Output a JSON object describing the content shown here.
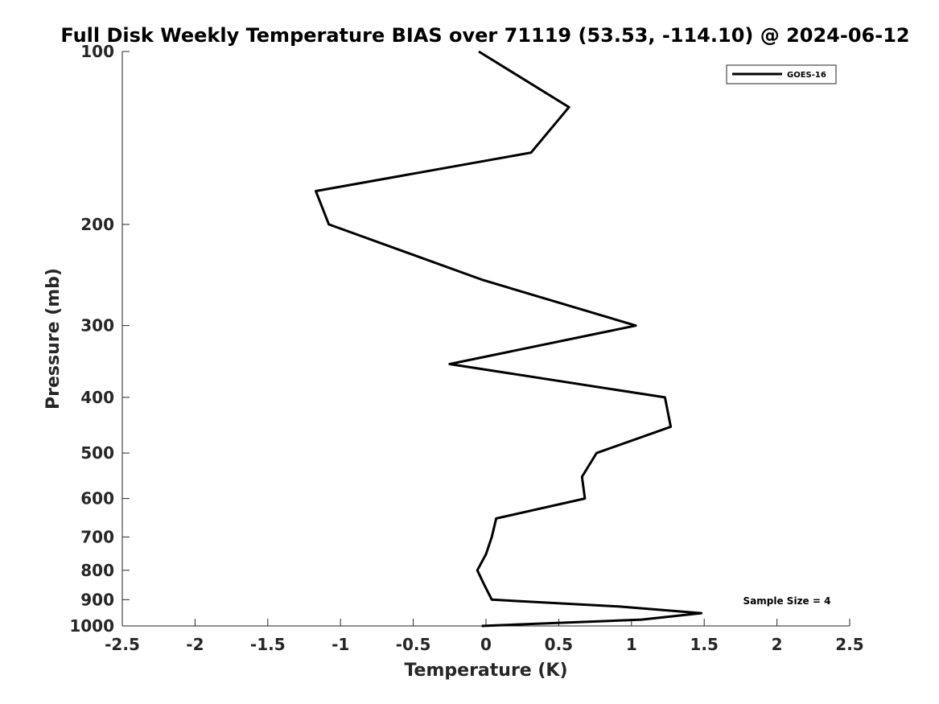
{
  "chart_data": {
    "type": "line",
    "title": "Full Disk Weekly Temperature BIAS over 71119 (53.53, -114.10) @ 2024-06-12",
    "xlabel": "Temperature (K)",
    "ylabel": "Pressure (mb)",
    "xlim": [
      -2.5,
      2.5
    ],
    "ylim": [
      100,
      1000
    ],
    "y_scale": "log",
    "y_reversed": true,
    "x_ticks": [
      -2.5,
      -2,
      -1.5,
      -1,
      -0.5,
      0,
      0.5,
      1,
      1.5,
      2,
      2.5
    ],
    "x_tick_labels": [
      "-2.5",
      "-2",
      "-1.5",
      "-1",
      "-0.5",
      "0",
      "0.5",
      "1",
      "1.5",
      "2",
      "2.5"
    ],
    "y_ticks": [
      100,
      200,
      300,
      400,
      500,
      600,
      700,
      800,
      900,
      1000
    ],
    "y_tick_labels": [
      "100",
      "200",
      "300",
      "400",
      "500",
      "600",
      "700",
      "800",
      "900",
      "1000"
    ],
    "grid": false,
    "legend_position": "top-right",
    "series": [
      {
        "name": "GOES-16",
        "color": "#000000",
        "points": [
          {
            "x": -0.05,
            "p": 100
          },
          {
            "x": 0.57,
            "p": 125
          },
          {
            "x": 0.31,
            "p": 150
          },
          {
            "x": -1.17,
            "p": 175
          },
          {
            "x": -1.08,
            "p": 200
          },
          {
            "x": -0.02,
            "p": 250
          },
          {
            "x": 1.03,
            "p": 300
          },
          {
            "x": -0.25,
            "p": 350
          },
          {
            "x": 1.23,
            "p": 400
          },
          {
            "x": 1.27,
            "p": 450
          },
          {
            "x": 0.76,
            "p": 500
          },
          {
            "x": 0.66,
            "p": 550
          },
          {
            "x": 0.68,
            "p": 600
          },
          {
            "x": 0.07,
            "p": 650
          },
          {
            "x": 0.04,
            "p": 700
          },
          {
            "x": 0.0,
            "p": 750
          },
          {
            "x": -0.06,
            "p": 800
          },
          {
            "x": -0.01,
            "p": 850
          },
          {
            "x": 0.04,
            "p": 900
          },
          {
            "x": 0.91,
            "p": 925
          },
          {
            "x": 1.48,
            "p": 950
          },
          {
            "x": 1.07,
            "p": 975
          },
          {
            "x": -0.03,
            "p": 1000
          }
        ]
      }
    ],
    "annotations": [
      {
        "text": "Sample Size = 4",
        "position": "bottom-right"
      }
    ]
  }
}
